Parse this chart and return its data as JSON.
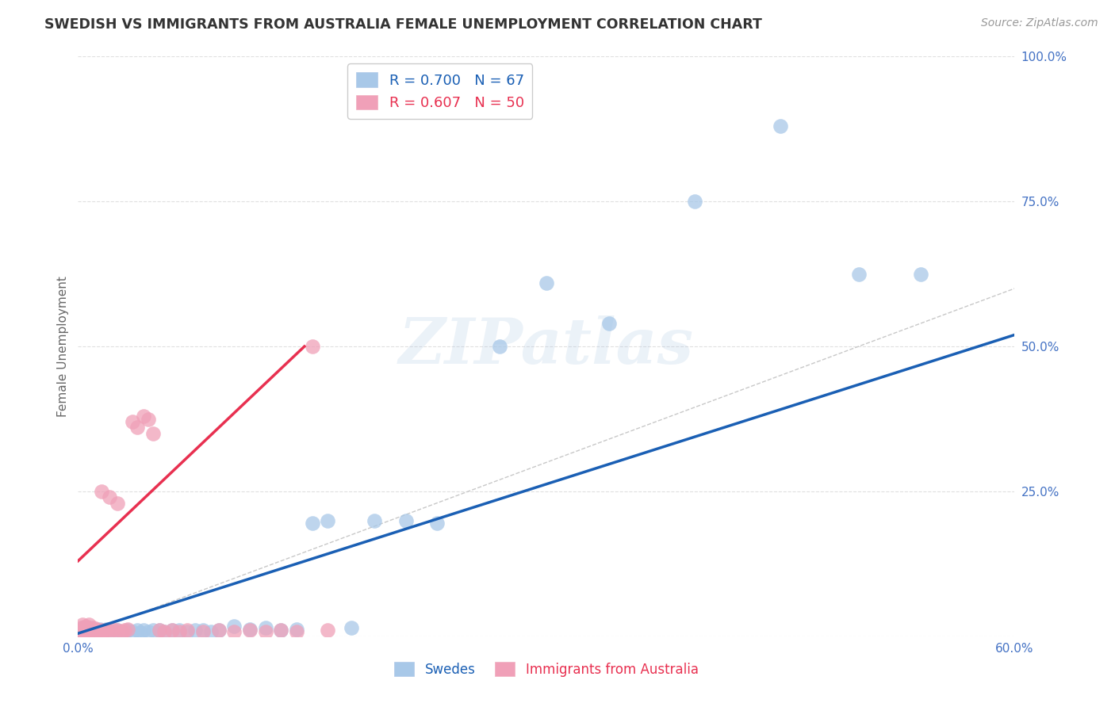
{
  "title": "SWEDISH VS IMMIGRANTS FROM AUSTRALIA FEMALE UNEMPLOYMENT CORRELATION CHART",
  "source": "Source: ZipAtlas.com",
  "ylabel": "Female Unemployment",
  "xlim": [
    0.0,
    0.6
  ],
  "ylim": [
    0.0,
    1.0
  ],
  "xtick_vals": [
    0.0,
    0.1,
    0.2,
    0.3,
    0.4,
    0.5,
    0.6
  ],
  "ytick_vals": [
    0.0,
    0.25,
    0.5,
    0.75,
    1.0
  ],
  "ytick_labels": [
    "",
    "25.0%",
    "50.0%",
    "75.0%",
    "100.0%"
  ],
  "xtick_labels": [
    "0.0%",
    "",
    "",
    "",
    "",
    "",
    "60.0%"
  ],
  "swedes_color": "#a8c8e8",
  "australia_color": "#f0a0b8",
  "line_swedes_color": "#1a5fb4",
  "line_australia_color": "#e83050",
  "diagonal_color": "#c8c8c8",
  "background_color": "#ffffff",
  "grid_color": "#e0e0e0",
  "legend1_R": "0.700",
  "legend1_N": "67",
  "legend2_R": "0.607",
  "legend2_N": "50",
  "swedes_line_x": [
    0.0,
    0.6
  ],
  "swedes_line_y": [
    0.005,
    0.52
  ],
  "australia_line_x": [
    0.0,
    0.145
  ],
  "australia_line_y": [
    0.13,
    0.5
  ],
  "swedes_x": [
    0.001,
    0.002,
    0.002,
    0.003,
    0.003,
    0.004,
    0.004,
    0.005,
    0.005,
    0.006,
    0.006,
    0.007,
    0.007,
    0.008,
    0.008,
    0.009,
    0.009,
    0.01,
    0.01,
    0.011,
    0.012,
    0.013,
    0.014,
    0.015,
    0.016,
    0.017,
    0.018,
    0.019,
    0.02,
    0.022,
    0.025,
    0.027,
    0.03,
    0.032,
    0.035,
    0.038,
    0.04,
    0.042,
    0.045,
    0.048,
    0.052,
    0.055,
    0.06,
    0.065,
    0.07,
    0.075,
    0.08,
    0.085,
    0.09,
    0.1,
    0.11,
    0.12,
    0.13,
    0.14,
    0.15,
    0.16,
    0.175,
    0.19,
    0.21,
    0.23,
    0.27,
    0.3,
    0.34,
    0.395,
    0.45,
    0.5,
    0.54
  ],
  "swedes_y": [
    0.01,
    0.008,
    0.012,
    0.006,
    0.015,
    0.009,
    0.012,
    0.007,
    0.015,
    0.005,
    0.01,
    0.008,
    0.012,
    0.006,
    0.015,
    0.005,
    0.01,
    0.008,
    0.012,
    0.007,
    0.01,
    0.008,
    0.012,
    0.006,
    0.01,
    0.008,
    0.012,
    0.007,
    0.01,
    0.008,
    0.01,
    0.008,
    0.007,
    0.01,
    0.008,
    0.01,
    0.007,
    0.01,
    0.008,
    0.01,
    0.01,
    0.008,
    0.01,
    0.01,
    0.008,
    0.01,
    0.01,
    0.008,
    0.01,
    0.018,
    0.012,
    0.015,
    0.01,
    0.012,
    0.195,
    0.2,
    0.015,
    0.2,
    0.2,
    0.195,
    0.5,
    0.61,
    0.54,
    0.75,
    0.88,
    0.625,
    0.625
  ],
  "australia_x": [
    0.001,
    0.002,
    0.002,
    0.003,
    0.003,
    0.004,
    0.005,
    0.005,
    0.006,
    0.006,
    0.007,
    0.007,
    0.008,
    0.009,
    0.01,
    0.01,
    0.011,
    0.012,
    0.014,
    0.015,
    0.016,
    0.018,
    0.02,
    0.022,
    0.025,
    0.028,
    0.03,
    0.032,
    0.035,
    0.038,
    0.042,
    0.045,
    0.048,
    0.052,
    0.055,
    0.06,
    0.065,
    0.07,
    0.08,
    0.09,
    0.1,
    0.11,
    0.12,
    0.13,
    0.14,
    0.15,
    0.16,
    0.015,
    0.02,
    0.025
  ],
  "australia_y": [
    0.008,
    0.015,
    0.01,
    0.02,
    0.008,
    0.012,
    0.01,
    0.018,
    0.008,
    0.015,
    0.01,
    0.02,
    0.008,
    0.012,
    0.015,
    0.008,
    0.01,
    0.012,
    0.008,
    0.01,
    0.008,
    0.01,
    0.008,
    0.012,
    0.01,
    0.008,
    0.01,
    0.012,
    0.37,
    0.36,
    0.38,
    0.375,
    0.35,
    0.01,
    0.008,
    0.01,
    0.008,
    0.01,
    0.008,
    0.01,
    0.008,
    0.01,
    0.008,
    0.01,
    0.008,
    0.5,
    0.01,
    0.25,
    0.24,
    0.23
  ]
}
